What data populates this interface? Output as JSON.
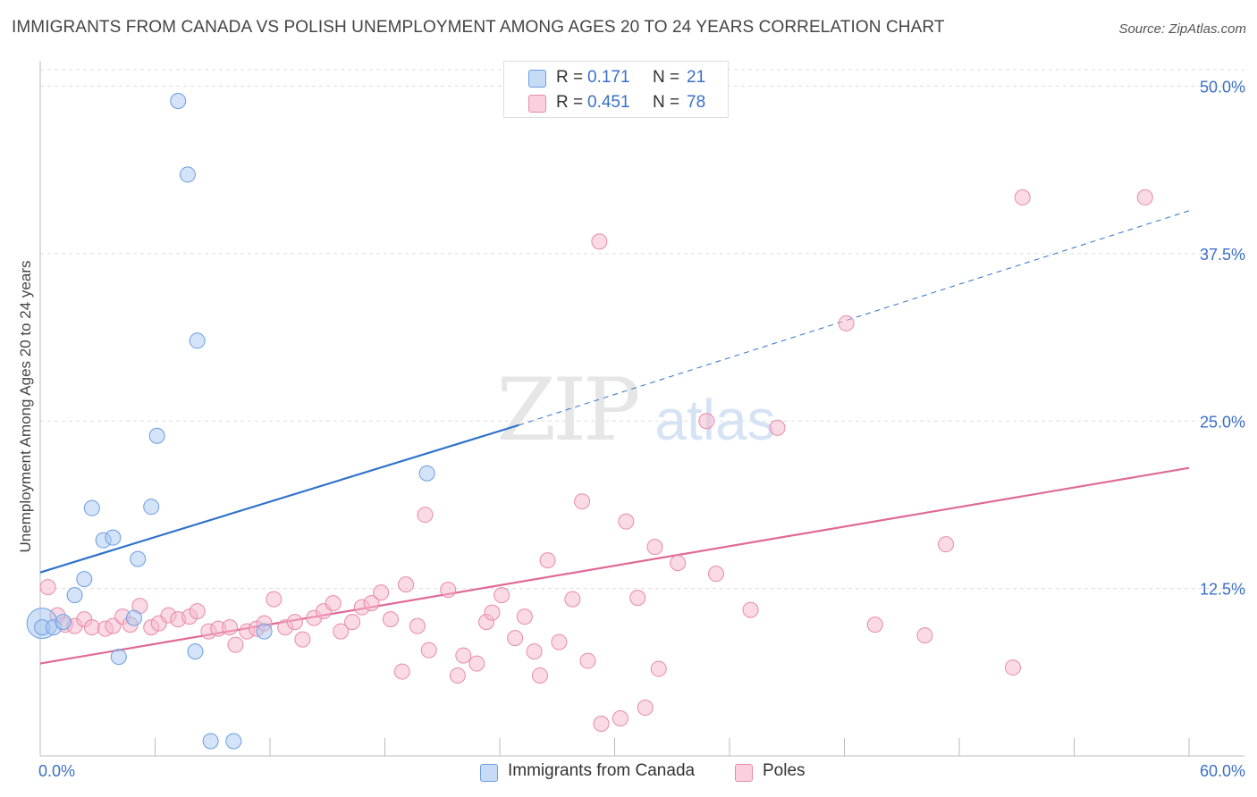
{
  "title": "IMMIGRANTS FROM CANADA VS POLISH UNEMPLOYMENT AMONG AGES 20 TO 24 YEARS CORRELATION CHART",
  "source": "Source: ZipAtlas.com",
  "watermark": {
    "zip": "ZIP",
    "atlas": "atlas"
  },
  "legend_top": [
    {
      "r_label": "R =",
      "r_value": "0.171",
      "n_label": "N =",
      "n_value": "21",
      "color": "#a9c8f0"
    },
    {
      "r_label": "R =",
      "r_value": "0.451",
      "n_label": "N =",
      "n_value": "78",
      "color": "#f6b7cb"
    }
  ],
  "legend_bottom": [
    {
      "label": "Immigrants from Canada",
      "color": "#a9c8f0"
    },
    {
      "label": "Poles",
      "color": "#f6b7cb"
    }
  ],
  "chart_data": {
    "type": "scatter",
    "title": "IMMIGRANTS FROM CANADA VS POLISH UNEMPLOYMENT AMONG AGES 20 TO 24 YEARS CORRELATION CHART",
    "xlabel": "",
    "ylabel": "Unemployment Among Ages 20 to 24 years",
    "xlim": [
      0,
      60
    ],
    "ylim": [
      0,
      50
    ],
    "x_tick_labels": [
      "0.0%",
      "60.0%"
    ],
    "y_ticks": [
      12.5,
      25.0,
      37.5,
      50.0
    ],
    "y_tick_labels": [
      "12.5%",
      "25.0%",
      "37.5%",
      "50.0%"
    ],
    "grid": true,
    "legend_position": "top-center",
    "series": [
      {
        "name": "Immigrants from Canada",
        "color": "#a9c8f0",
        "edge": "#6a9ee0",
        "line_color": "#2f72cc",
        "trend": {
          "x": [
            0,
            25
          ],
          "y": [
            13.7,
            24.7
          ],
          "extend_to_x": 60,
          "extend_to_y": 40.7
        },
        "points": [
          [
            0.1,
            9.6
          ],
          [
            0.7,
            9.6
          ],
          [
            1.2,
            10.0
          ],
          [
            1.8,
            12.0
          ],
          [
            2.3,
            13.2
          ],
          [
            2.7,
            18.5
          ],
          [
            3.3,
            16.1
          ],
          [
            3.8,
            16.3
          ],
          [
            4.1,
            7.4
          ],
          [
            4.9,
            10.3
          ],
          [
            5.1,
            14.7
          ],
          [
            5.8,
            18.6
          ],
          [
            6.1,
            23.9
          ],
          [
            7.2,
            48.9
          ],
          [
            7.7,
            43.4
          ],
          [
            8.2,
            31.0
          ],
          [
            8.1,
            7.8
          ],
          [
            8.9,
            1.1
          ],
          [
            10.1,
            1.1
          ],
          [
            11.7,
            9.3
          ],
          [
            20.2,
            21.1
          ]
        ],
        "big_point": [
          0.1,
          9.9
        ]
      },
      {
        "name": "Poles",
        "color": "#f6b7cb",
        "edge": "#e88aa8",
        "line_color": "#e06996",
        "trend": {
          "x": [
            0,
            60
          ],
          "y": [
            6.9,
            21.5
          ]
        },
        "points": [
          [
            0.4,
            12.6
          ],
          [
            0.9,
            10.5
          ],
          [
            1.3,
            9.8
          ],
          [
            1.8,
            9.7
          ],
          [
            2.3,
            10.2
          ],
          [
            2.7,
            9.6
          ],
          [
            3.4,
            9.5
          ],
          [
            3.8,
            9.7
          ],
          [
            4.3,
            10.4
          ],
          [
            4.7,
            9.8
          ],
          [
            5.2,
            11.2
          ],
          [
            5.8,
            9.6
          ],
          [
            6.2,
            9.9
          ],
          [
            6.7,
            10.5
          ],
          [
            7.2,
            10.2
          ],
          [
            7.8,
            10.4
          ],
          [
            8.2,
            10.8
          ],
          [
            8.8,
            9.3
          ],
          [
            9.3,
            9.5
          ],
          [
            9.9,
            9.6
          ],
          [
            10.2,
            8.3
          ],
          [
            10.8,
            9.3
          ],
          [
            11.3,
            9.5
          ],
          [
            11.7,
            9.9
          ],
          [
            12.2,
            11.7
          ],
          [
            12.8,
            9.6
          ],
          [
            13.3,
            10.0
          ],
          [
            13.7,
            8.7
          ],
          [
            14.3,
            10.3
          ],
          [
            14.8,
            10.8
          ],
          [
            15.3,
            11.4
          ],
          [
            15.7,
            9.3
          ],
          [
            16.3,
            10.0
          ],
          [
            16.8,
            11.1
          ],
          [
            17.3,
            11.4
          ],
          [
            17.8,
            12.2
          ],
          [
            18.3,
            10.2
          ],
          [
            18.9,
            6.3
          ],
          [
            19.1,
            12.8
          ],
          [
            19.7,
            9.7
          ],
          [
            20.3,
            7.9
          ],
          [
            20.1,
            18.0
          ],
          [
            21.3,
            12.4
          ],
          [
            21.8,
            6.0
          ],
          [
            22.1,
            7.5
          ],
          [
            22.8,
            6.9
          ],
          [
            23.3,
            10.0
          ],
          [
            23.6,
            10.7
          ],
          [
            24.1,
            12.0
          ],
          [
            24.8,
            8.8
          ],
          [
            25.3,
            10.4
          ],
          [
            25.8,
            7.8
          ],
          [
            26.1,
            6.0
          ],
          [
            26.5,
            14.6
          ],
          [
            27.1,
            8.5
          ],
          [
            27.8,
            11.7
          ],
          [
            28.3,
            19.0
          ],
          [
            28.6,
            7.1
          ],
          [
            29.2,
            38.4
          ],
          [
            29.3,
            2.4
          ],
          [
            30.3,
            2.8
          ],
          [
            30.6,
            17.5
          ],
          [
            31.2,
            11.8
          ],
          [
            31.6,
            3.6
          ],
          [
            32.1,
            15.6
          ],
          [
            32.3,
            6.5
          ],
          [
            33.3,
            14.4
          ],
          [
            34.8,
            25.0
          ],
          [
            35.3,
            13.6
          ],
          [
            37.1,
            10.9
          ],
          [
            38.5,
            24.5
          ],
          [
            42.1,
            32.3
          ],
          [
            43.6,
            9.8
          ],
          [
            46.2,
            9.0
          ],
          [
            47.3,
            15.8
          ],
          [
            50.8,
            6.6
          ],
          [
            51.3,
            41.7
          ],
          [
            57.7,
            41.7
          ]
        ]
      }
    ]
  }
}
